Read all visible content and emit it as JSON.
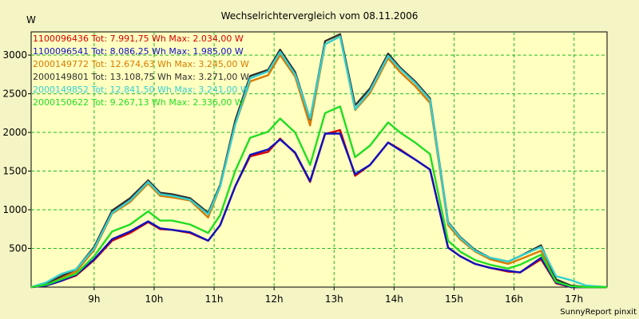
{
  "chart_data": {
    "type": "line",
    "title": "Wechselrichtervergleich vom 08.11.2006",
    "ylabel": "W",
    "xlabel": "",
    "footer": "SunnyReport pinxit",
    "grid": true,
    "legend_position": "top-left",
    "xlim": [
      7.95,
      17.55
    ],
    "ylim": [
      0,
      3300
    ],
    "x_ticks": [
      9,
      10,
      11,
      12,
      13,
      14,
      15,
      16,
      17
    ],
    "x_tick_labels": [
      "9h",
      "10h",
      "11h",
      "12h",
      "13h",
      "14h",
      "15h",
      "16h",
      "17h"
    ],
    "y_ticks": [
      500,
      1000,
      1500,
      2000,
      2500,
      3000
    ],
    "y_tick_labels": [
      "500",
      "1000",
      "1500",
      "2000",
      "2500",
      "3000"
    ],
    "x": [
      7.95,
      8.2,
      8.45,
      8.7,
      9.0,
      9.3,
      9.6,
      9.9,
      10.1,
      10.3,
      10.6,
      10.9,
      11.1,
      11.35,
      11.6,
      11.9,
      12.1,
      12.35,
      12.6,
      12.85,
      13.1,
      13.35,
      13.6,
      13.9,
      14.1,
      14.35,
      14.6,
      14.9,
      15.1,
      15.35,
      15.6,
      15.9,
      16.1,
      16.45,
      16.7,
      16.95,
      17.2,
      17.55
    ],
    "series": [
      {
        "name": "1100096436",
        "label": "1100096436 Tot: 7.991,75 Wh Max: 2.034,00 W",
        "color": "#d40000",
        "values": [
          0,
          20,
          80,
          150,
          350,
          600,
          700,
          840,
          750,
          740,
          700,
          600,
          800,
          1300,
          1690,
          1750,
          1920,
          1730,
          1360,
          1980,
          2030,
          1440,
          1580,
          1870,
          1780,
          1650,
          1520,
          510,
          400,
          300,
          250,
          200,
          190,
          360,
          50,
          0,
          0,
          0
        ]
      },
      {
        "name": "1100096541",
        "label": "1100096541 Tot: 8.086,25 Wh Max: 1.985,00 W",
        "color": "#1010c0",
        "values": [
          0,
          20,
          80,
          160,
          360,
          620,
          720,
          850,
          760,
          740,
          710,
          600,
          800,
          1300,
          1710,
          1780,
          1910,
          1740,
          1370,
          1985,
          1985,
          1460,
          1580,
          1870,
          1770,
          1650,
          1520,
          510,
          400,
          300,
          250,
          210,
          190,
          380,
          60,
          0,
          0,
          0
        ]
      },
      {
        "name": "2000149772",
        "label": "2000149772 Tot: 12.674,63 Wh Max: 3.245,00 W",
        "color": "#d97a00",
        "values": [
          0,
          40,
          120,
          200,
          480,
          950,
          1100,
          1340,
          1180,
          1160,
          1120,
          900,
          1300,
          2100,
          2660,
          2740,
          3000,
          2720,
          2090,
          3140,
          3245,
          2290,
          2510,
          2960,
          2780,
          2600,
          2380,
          800,
          620,
          460,
          360,
          300,
          360,
          470,
          90,
          20,
          0,
          0
        ]
      },
      {
        "name": "2000149801",
        "label": "2000149801 Tot: 13.108,75 Wh Max: 3.271,00 W",
        "color": "#303030",
        "values": [
          0,
          50,
          140,
          230,
          520,
          990,
          1150,
          1380,
          1220,
          1200,
          1150,
          960,
          1320,
          2150,
          2730,
          2810,
          3070,
          2780,
          2170,
          3180,
          3271,
          2350,
          2570,
          3020,
          2840,
          2660,
          2440,
          840,
          650,
          480,
          380,
          330,
          400,
          540,
          100,
          20,
          0,
          0
        ]
      },
      {
        "name": "2000149852",
        "label": "2000149852 Tot: 12.841,50 Wh Max: 3.241,00 W",
        "color": "#33d0d0",
        "values": [
          0,
          60,
          170,
          230,
          500,
          960,
          1120,
          1360,
          1200,
          1180,
          1130,
          940,
          1300,
          2100,
          2700,
          2790,
          3040,
          2750,
          2180,
          3140,
          3241,
          2300,
          2540,
          2990,
          2820,
          2640,
          2420,
          830,
          640,
          470,
          380,
          330,
          400,
          520,
          140,
          90,
          20,
          0
        ]
      },
      {
        "name": "2000150622",
        "label": "2000150622 Tot: 9.267,13 Wh Max: 2.336,00 W",
        "color": "#22dd22",
        "values": [
          0,
          30,
          100,
          170,
          400,
          720,
          810,
          980,
          860,
          860,
          810,
          700,
          930,
          1500,
          1930,
          2010,
          2180,
          2000,
          1580,
          2250,
          2336,
          1680,
          1830,
          2130,
          2000,
          1870,
          1720,
          600,
          460,
          350,
          290,
          240,
          290,
          420,
          70,
          10,
          0,
          0
        ]
      }
    ]
  }
}
